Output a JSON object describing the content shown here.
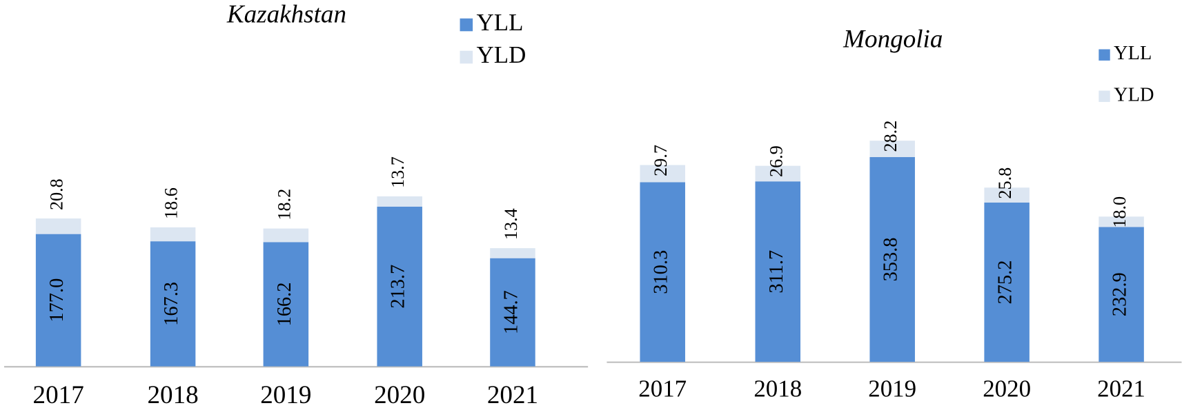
{
  "chart_data": [
    {
      "type": "bar",
      "stacked": true,
      "title": "Kazakhstan",
      "categories": [
        "2017",
        "2018",
        "2019",
        "2020",
        "2021"
      ],
      "series": [
        {
          "name": "YLL",
          "color": "#558ed5",
          "values": [
            177.0,
            167.3,
            166.2,
            213.7,
            144.7
          ],
          "value_labels": [
            "177.0",
            "167.3",
            "166.2",
            "213.7",
            "144.7"
          ]
        },
        {
          "name": "YLD",
          "color": "#dce6f2",
          "values": [
            20.8,
            18.6,
            18.2,
            13.7,
            13.4
          ],
          "value_labels": [
            "20.8",
            "18.6",
            "18.2",
            "13.7",
            "13.4"
          ]
        }
      ],
      "legend": "top-right"
    },
    {
      "type": "bar",
      "stacked": true,
      "title": "Mongolia",
      "categories": [
        "2017",
        "2018",
        "2019",
        "2020",
        "2021"
      ],
      "series": [
        {
          "name": "YLL",
          "color": "#558ed5",
          "values": [
            310.3,
            311.7,
            353.8,
            275.2,
            232.9
          ],
          "value_labels": [
            "310.3",
            "311.7",
            "353.8",
            "275.2",
            "232.9"
          ]
        },
        {
          "name": "YLD",
          "color": "#dce6f2",
          "values": [
            29.7,
            26.9,
            28.2,
            25.8,
            18.0
          ],
          "value_labels": [
            "29.7",
            "26.9",
            "28.2",
            "25.8",
            "18.0"
          ]
        }
      ],
      "legend": "top-right"
    }
  ]
}
